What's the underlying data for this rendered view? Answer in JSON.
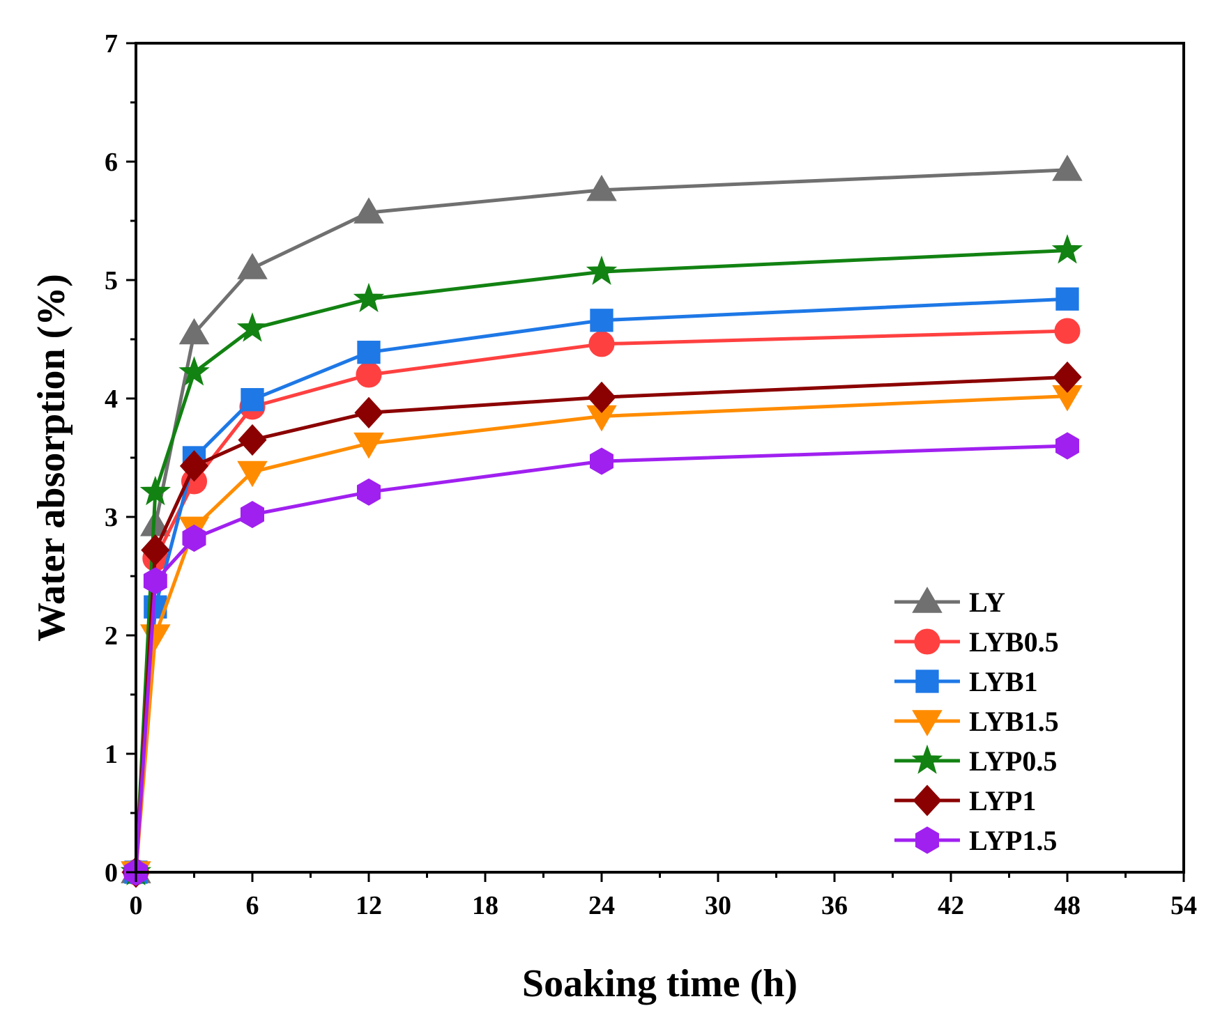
{
  "chart_data": {
    "type": "line",
    "title": "",
    "xlabel": "Soaking time (h)",
    "ylabel": "Water absorption (%)",
    "xlim": [
      0,
      54
    ],
    "ylim": [
      0,
      7
    ],
    "xticks": [
      0,
      6,
      12,
      18,
      24,
      30,
      36,
      42,
      48,
      54
    ],
    "yticks": [
      0,
      1,
      2,
      3,
      4,
      5,
      6,
      7
    ],
    "x": [
      0,
      1,
      3,
      6,
      12,
      24,
      48
    ],
    "legend_position": "bottom-right",
    "grid": false,
    "series": [
      {
        "name": "LY",
        "label_display": " LY",
        "color": "#707070",
        "marker": "triangle-up",
        "values": [
          0,
          2.93,
          4.55,
          5.1,
          5.57,
          5.76,
          5.93
        ]
      },
      {
        "name": "LYB0.5",
        "label_display": "LYB0.5",
        "color": "#ff4040",
        "marker": "circle",
        "values": [
          0,
          2.65,
          3.3,
          3.93,
          4.2,
          4.46,
          4.57
        ]
      },
      {
        "name": "LYB1",
        "label_display": "LYB1",
        "color": "#1e78e6",
        "marker": "square",
        "values": [
          0,
          2.24,
          3.5,
          3.99,
          4.39,
          4.66,
          4.84
        ]
      },
      {
        "name": "LYB1.5",
        "label_display": "LYB1.5",
        "color": "#ff8c00",
        "marker": "triangle-down",
        "values": [
          0,
          2.0,
          2.91,
          3.38,
          3.62,
          3.85,
          4.02
        ]
      },
      {
        "name": "LYP0.5",
        "label_display": "LYP0.5",
        "color": "#128212",
        "marker": "star",
        "values": [
          0,
          3.21,
          4.22,
          4.59,
          4.84,
          5.07,
          5.25
        ]
      },
      {
        "name": "LYP1",
        "label_display": "LYP1",
        "color": "#8b0000",
        "marker": "diamond",
        "values": [
          0,
          2.72,
          3.43,
          3.65,
          3.88,
          4.01,
          4.18
        ]
      },
      {
        "name": "LYP1.5",
        "label_display": "LYP1.5",
        "color": "#a020f0",
        "marker": "hexagon",
        "values": [
          0,
          2.46,
          2.82,
          3.02,
          3.21,
          3.47,
          3.6
        ]
      }
    ]
  }
}
